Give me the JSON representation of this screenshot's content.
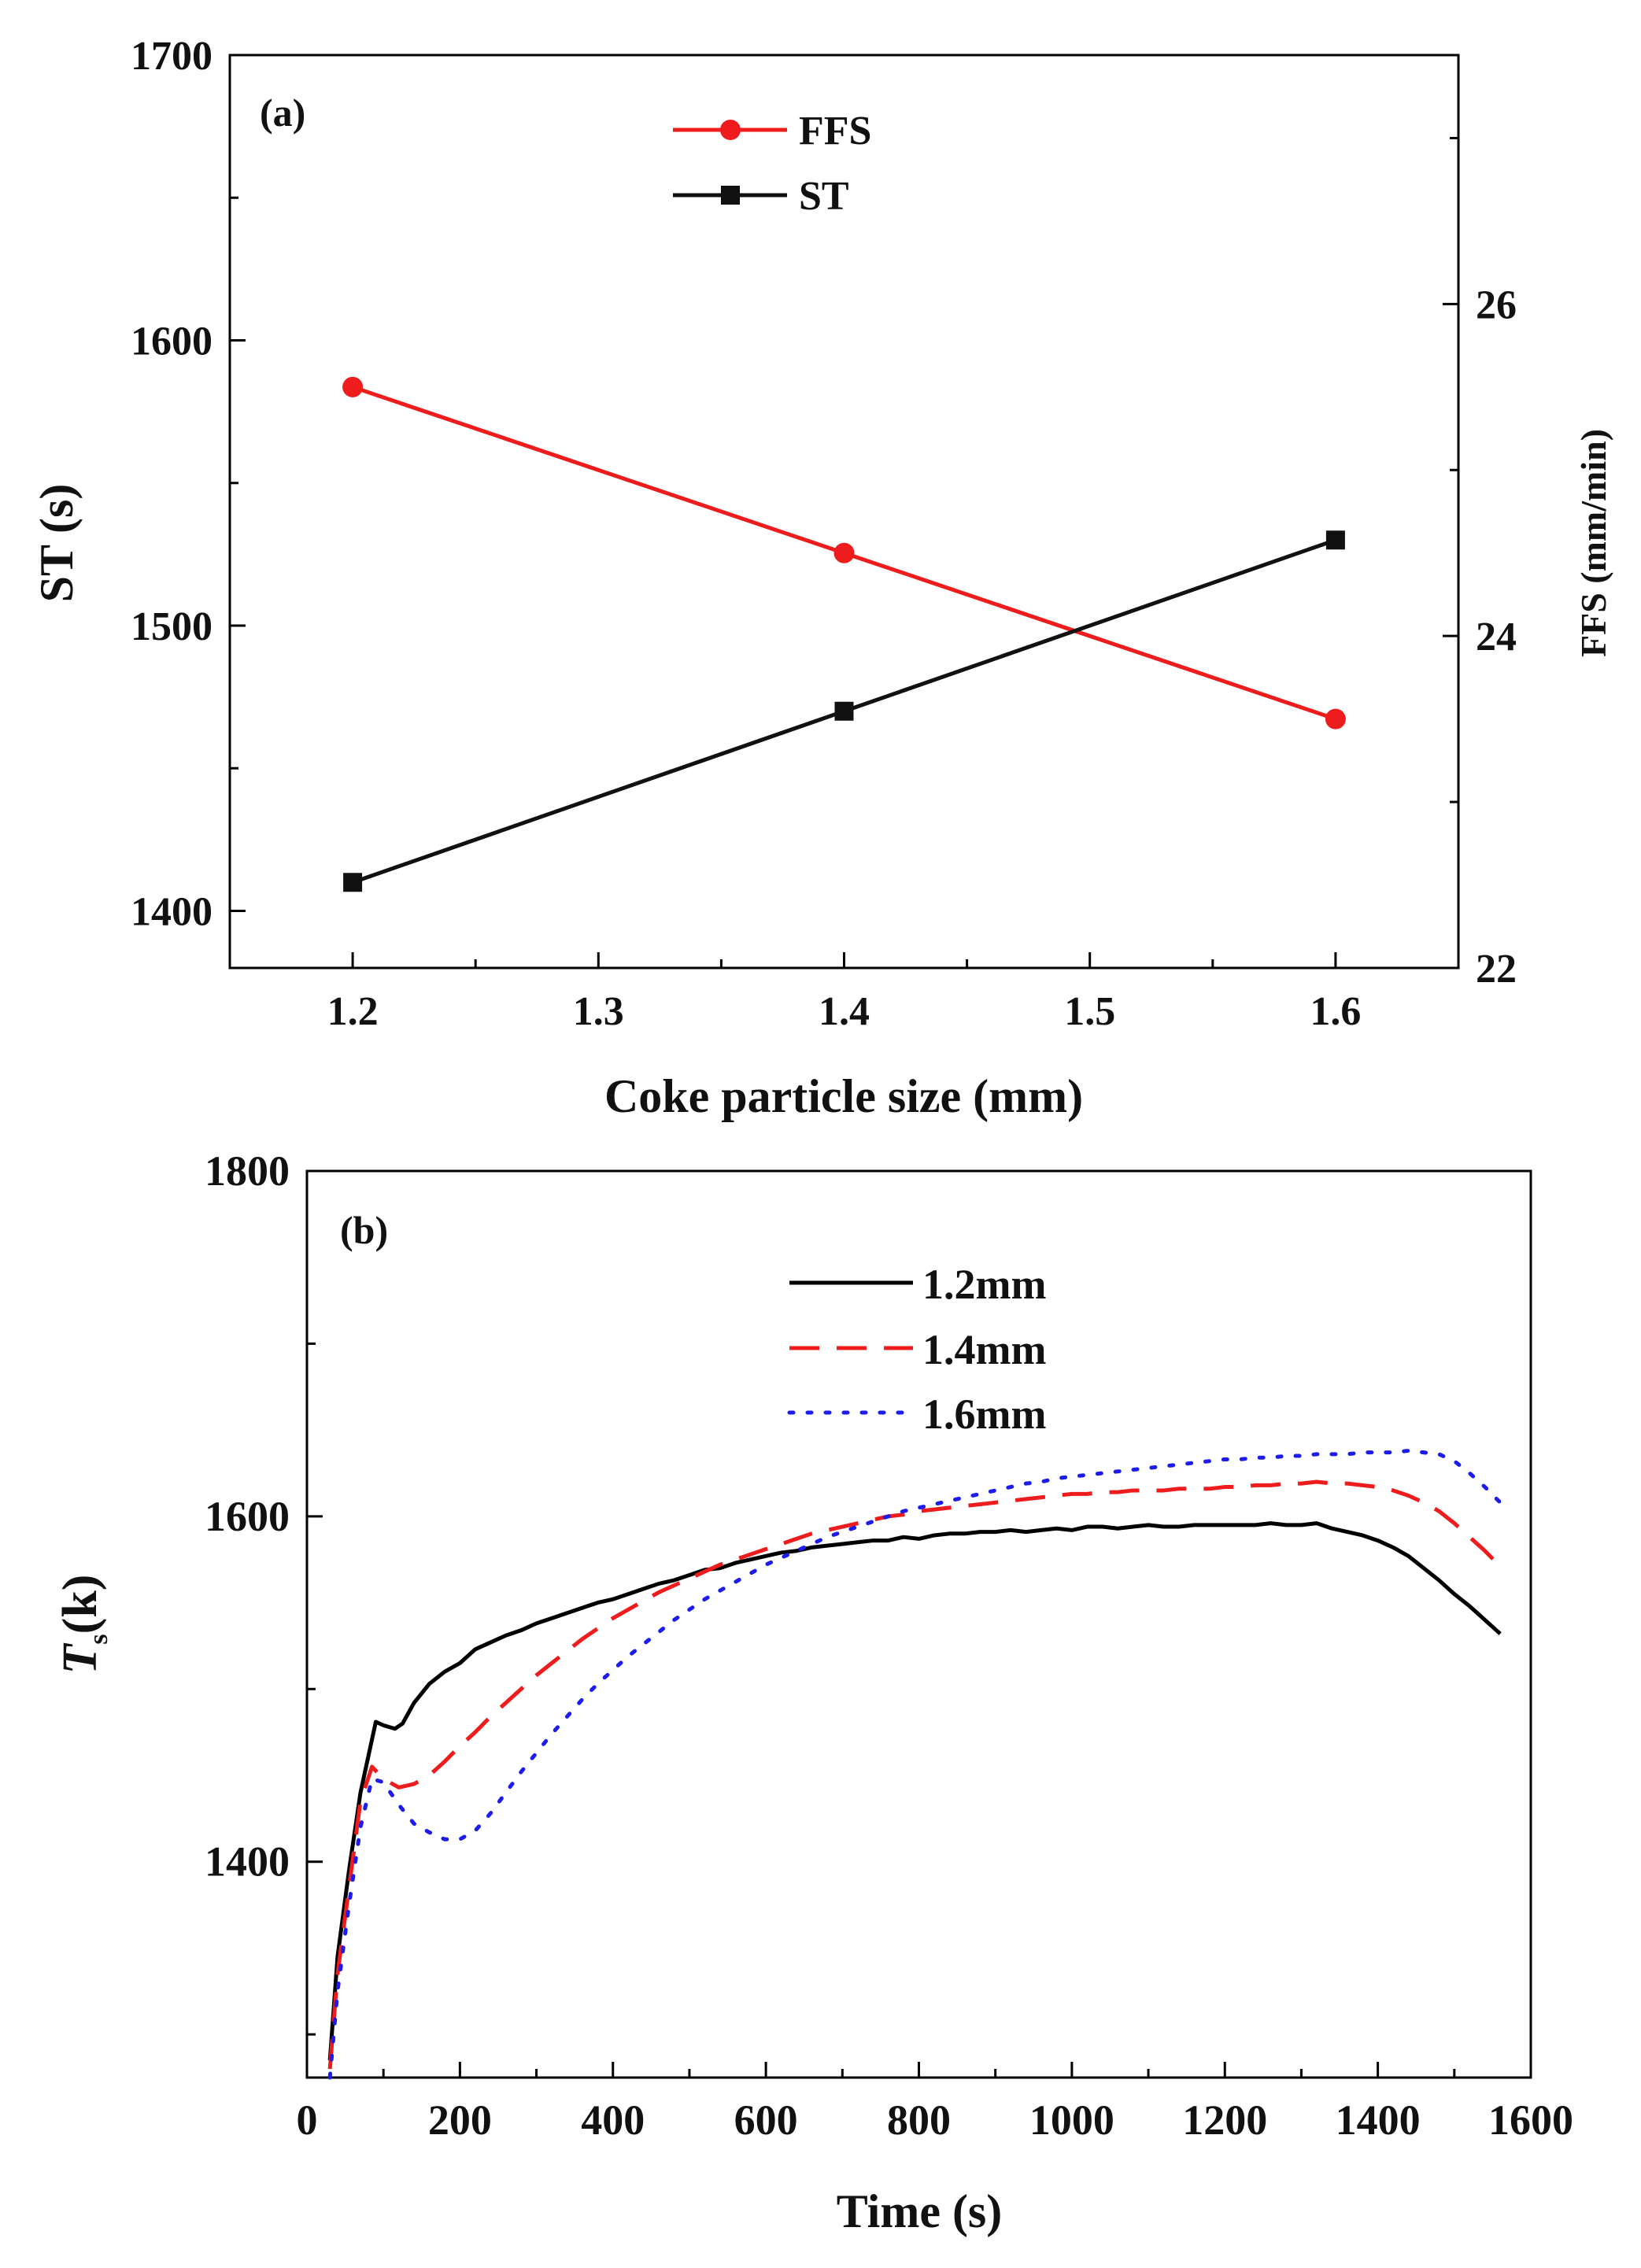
{
  "chart_data": [
    {
      "type": "line",
      "panel_label": "(a)",
      "xlabel": "Coke particle size (mm)",
      "ylabel_left": "ST (s)",
      "ylabel_right": "FFS (mm/min)",
      "x_ticks": [
        1.2,
        1.3,
        1.4,
        1.5,
        1.6
      ],
      "x_tick_labels": [
        "1.2",
        "1.3",
        "1.4",
        "1.5",
        "1.6"
      ],
      "xlim": [
        1.15,
        1.65
      ],
      "ylim_left": [
        1380,
        1700
      ],
      "y_ticks_left": [
        1400,
        1500,
        1600,
        1700
      ],
      "y_tick_labels_left": [
        "1400",
        "1500",
        "1600",
        "1700"
      ],
      "ylim_right": [
        22,
        27.5
      ],
      "y_ticks_right": [
        22,
        24,
        26
      ],
      "y_tick_labels_right": [
        "22",
        "24",
        "26"
      ],
      "legend_position": "top-center",
      "series": [
        {
          "name": "FFS",
          "axis": "right",
          "color": "#ee1c1c",
          "marker": "circle",
          "x": [
            1.2,
            1.4,
            1.6
          ],
          "values": [
            25.5,
            24.5,
            23.5
          ]
        },
        {
          "name": "ST",
          "axis": "left",
          "color": "#111111",
          "marker": "square",
          "x": [
            1.2,
            1.4,
            1.6
          ],
          "values": [
            1410,
            1470,
            1530
          ]
        }
      ]
    },
    {
      "type": "line",
      "panel_label": "(b)",
      "xlabel": "Time (s)",
      "ylabel_main": "T",
      "ylabel_sub": "s",
      "ylabel_unit": "(k)",
      "xlim": [
        0,
        1600
      ],
      "x_ticks": [
        0,
        200,
        400,
        600,
        800,
        1000,
        1200,
        1400,
        1600
      ],
      "x_tick_labels": [
        "0",
        "200",
        "400",
        "600",
        "800",
        "1000",
        "1200",
        "1400",
        "1600"
      ],
      "ylim": [
        1275,
        1800
      ],
      "y_ticks": [
        1400,
        1600,
        1800
      ],
      "y_tick_labels": [
        "1400",
        "1600",
        "1800"
      ],
      "legend_position": "top-center",
      "series": [
        {
          "name": "1.2mm",
          "color": "#000000",
          "dash": "solid",
          "x": [
            30,
            40,
            55,
            70,
            90,
            100,
            115,
            125,
            140,
            160,
            180,
            200,
            220,
            240,
            260,
            280,
            300,
            320,
            340,
            360,
            380,
            400,
            420,
            440,
            460,
            480,
            500,
            520,
            540,
            560,
            580,
            600,
            620,
            640,
            660,
            680,
            700,
            720,
            740,
            760,
            780,
            800,
            820,
            840,
            860,
            880,
            900,
            920,
            940,
            960,
            980,
            1000,
            1020,
            1040,
            1060,
            1080,
            1100,
            1120,
            1140,
            1160,
            1180,
            1200,
            1220,
            1240,
            1260,
            1280,
            1300,
            1320,
            1340,
            1360,
            1380,
            1400,
            1420,
            1440,
            1460,
            1480,
            1500,
            1520,
            1540,
            1560
          ],
          "values": [
            1285,
            1345,
            1395,
            1440,
            1481,
            1479,
            1477,
            1480,
            1492,
            1503,
            1510,
            1515,
            1523,
            1527,
            1531,
            1534,
            1538,
            1541,
            1544,
            1547,
            1550,
            1552,
            1555,
            1558,
            1561,
            1563,
            1566,
            1569,
            1570,
            1573,
            1575,
            1577,
            1579,
            1580,
            1582,
            1583,
            1584,
            1585,
            1586,
            1586,
            1588,
            1587,
            1589,
            1590,
            1590,
            1591,
            1591,
            1592,
            1591,
            1592,
            1593,
            1592,
            1594,
            1594,
            1593,
            1594,
            1595,
            1594,
            1594,
            1595,
            1595,
            1595,
            1595,
            1595,
            1596,
            1595,
            1595,
            1596,
            1593,
            1591,
            1589,
            1586,
            1582,
            1577,
            1570,
            1563,
            1555,
            1548,
            1540,
            1532
          ]
        },
        {
          "name": "1.4mm",
          "color": "#ee1c1c",
          "dash": "dashed",
          "x": [
            30,
            40,
            55,
            70,
            85,
            100,
            120,
            140,
            160,
            180,
            200,
            220,
            240,
            260,
            280,
            300,
            320,
            340,
            360,
            380,
            400,
            420,
            440,
            460,
            480,
            500,
            520,
            540,
            560,
            580,
            600,
            620,
            640,
            660,
            680,
            700,
            720,
            740,
            760,
            780,
            800,
            820,
            840,
            860,
            880,
            900,
            920,
            940,
            960,
            980,
            1000,
            1020,
            1040,
            1060,
            1080,
            1100,
            1120,
            1140,
            1160,
            1180,
            1200,
            1220,
            1240,
            1260,
            1280,
            1300,
            1320,
            1340,
            1360,
            1380,
            1400,
            1420,
            1440,
            1460,
            1480,
            1500,
            1520,
            1540,
            1560
          ],
          "values": [
            1280,
            1335,
            1385,
            1435,
            1455,
            1448,
            1443,
            1445,
            1450,
            1458,
            1467,
            1475,
            1484,
            1492,
            1500,
            1508,
            1515,
            1522,
            1529,
            1535,
            1541,
            1546,
            1551,
            1556,
            1560,
            1564,
            1568,
            1572,
            1575,
            1578,
            1581,
            1584,
            1587,
            1590,
            1592,
            1594,
            1596,
            1598,
            1600,
            1601,
            1603,
            1604,
            1605,
            1606,
            1607,
            1608,
            1609,
            1610,
            1611,
            1612,
            1613,
            1613,
            1614,
            1614,
            1615,
            1615,
            1615,
            1616,
            1616,
            1616,
            1617,
            1617,
            1618,
            1618,
            1619,
            1619,
            1620,
            1619,
            1619,
            1618,
            1617,
            1615,
            1612,
            1608,
            1603,
            1596,
            1588,
            1580,
            1571
          ]
        },
        {
          "name": "1.6mm",
          "color": "#1c1cee",
          "dash": "dotted",
          "x": [
            30,
            40,
            55,
            70,
            85,
            100,
            120,
            140,
            160,
            180,
            200,
            220,
            240,
            260,
            280,
            300,
            320,
            340,
            360,
            380,
            400,
            420,
            440,
            460,
            480,
            500,
            520,
            540,
            560,
            580,
            600,
            620,
            640,
            660,
            680,
            700,
            720,
            740,
            760,
            780,
            800,
            820,
            840,
            860,
            880,
            900,
            920,
            940,
            960,
            980,
            1000,
            1020,
            1040,
            1060,
            1080,
            1100,
            1120,
            1140,
            1160,
            1180,
            1200,
            1220,
            1240,
            1260,
            1280,
            1300,
            1320,
            1340,
            1360,
            1380,
            1400,
            1420,
            1440,
            1460,
            1480,
            1500,
            1520,
            1540,
            1560
          ],
          "values": [
            1275,
            1325,
            1375,
            1420,
            1448,
            1446,
            1433,
            1422,
            1417,
            1413,
            1413,
            1418,
            1428,
            1440,
            1452,
            1463,
            1474,
            1484,
            1494,
            1503,
            1511,
            1519,
            1526,
            1533,
            1540,
            1546,
            1552,
            1557,
            1562,
            1567,
            1572,
            1576,
            1580,
            1584,
            1588,
            1591,
            1594,
            1597,
            1600,
            1603,
            1605,
            1607,
            1609,
            1611,
            1613,
            1615,
            1617,
            1619,
            1620,
            1622,
            1623,
            1624,
            1625,
            1626,
            1627,
            1628,
            1629,
            1630,
            1631,
            1632,
            1633,
            1633,
            1634,
            1634,
            1635,
            1635,
            1636,
            1636,
            1636,
            1637,
            1637,
            1637,
            1638,
            1637,
            1636,
            1632,
            1625,
            1617,
            1608
          ]
        }
      ]
    }
  ]
}
